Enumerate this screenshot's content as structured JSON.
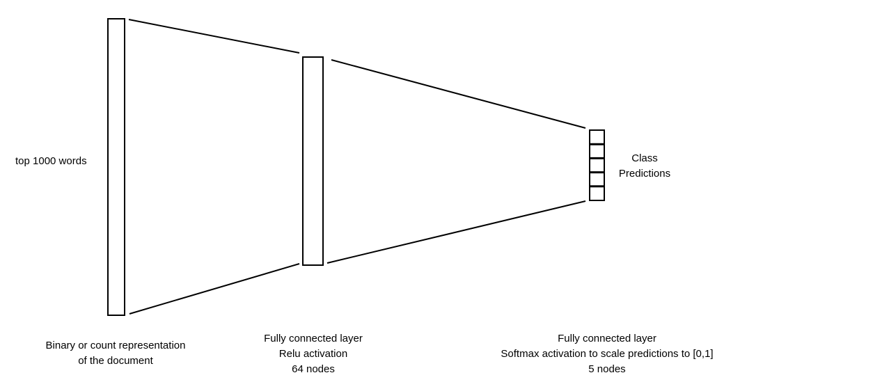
{
  "input_layer": {
    "side_label": "top 1000 words",
    "caption": [
      "Binary or count representation",
      "of the document"
    ]
  },
  "hidden_layer": {
    "caption": [
      "Fully connected layer",
      "Relu activation",
      "64 nodes"
    ]
  },
  "output_layer": {
    "side_label": [
      "Class",
      "Predictions"
    ],
    "caption": [
      "Fully connected layer",
      "Softmax activation to scale predictions to [0,1]",
      "5 nodes"
    ],
    "node_count": 5
  }
}
